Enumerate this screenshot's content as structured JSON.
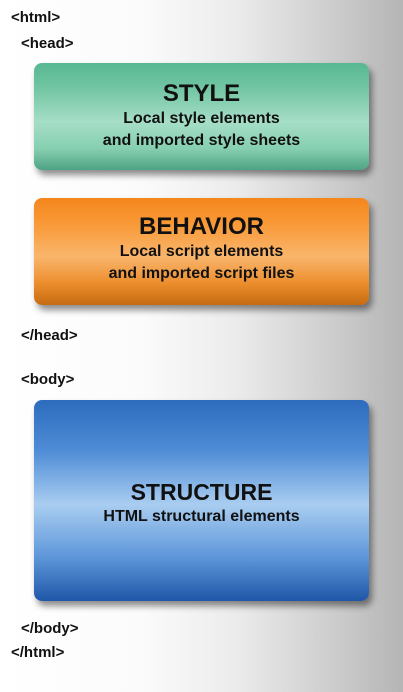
{
  "tags": {
    "html_open": "<html>",
    "head_open": "<head>",
    "head_close": "</head>",
    "body_open": "<body>",
    "body_close": "</body>",
    "html_close": "</html>"
  },
  "boxes": {
    "style": {
      "title": "STYLE",
      "line1": "Local style elements",
      "line2": "and imported style sheets",
      "color": "#74c6a4"
    },
    "behavior": {
      "title": "BEHAVIOR",
      "line1": "Local script elements",
      "line2": "and imported script files",
      "color": "#f99a38"
    },
    "structure": {
      "title": "STRUCTURE",
      "line1": "HTML structural elements",
      "color": "#4e8cd6"
    }
  }
}
